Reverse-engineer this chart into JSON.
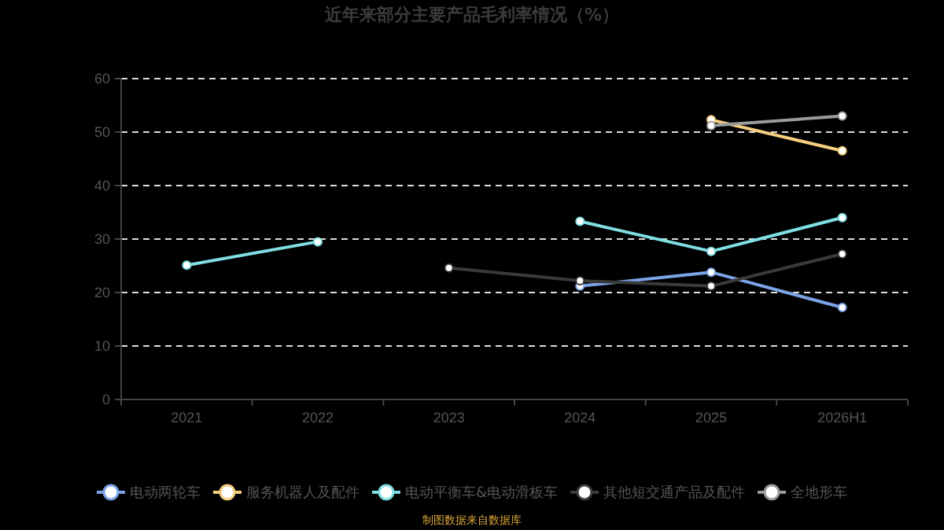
{
  "chart_data": {
    "type": "line",
    "title": "近年来部分主要产品毛利率情况（%）",
    "categories": [
      "2021",
      "2022",
      "2023",
      "2024",
      "2025",
      "2026H1"
    ],
    "series": [
      {
        "name": "电动两轮车",
        "color": "#7ba3e6",
        "values": [
          null,
          null,
          null,
          21.2,
          23.8,
          17.2
        ]
      },
      {
        "name": "服务机器人及配件",
        "color": "#f5cf7e",
        "values": [
          null,
          null,
          null,
          null,
          52.3,
          46.5
        ]
      },
      {
        "name": "电动平衡车&电动滑板车",
        "color": "#7fdfe3",
        "values": [
          25.1,
          29.5,
          null,
          33.3,
          27.7,
          34.0
        ]
      },
      {
        "name": "其他短交通产品及配件",
        "color": "#3a3a3a",
        "values": [
          null,
          null,
          24.6,
          22.2,
          21.2,
          27.2
        ]
      },
      {
        "name": "全地形车",
        "color": "#9a9a9a",
        "values": [
          null,
          null,
          null,
          null,
          51.2,
          53.0
        ]
      }
    ],
    "ylim": [
      0,
      60
    ],
    "yticks": [
      0,
      10,
      20,
      30,
      40,
      50,
      60
    ],
    "grid": "y",
    "legend": "bottom",
    "marker": "circle",
    "line_style": "solid",
    "annotations": [
      "制图数据来自数据库"
    ]
  }
}
